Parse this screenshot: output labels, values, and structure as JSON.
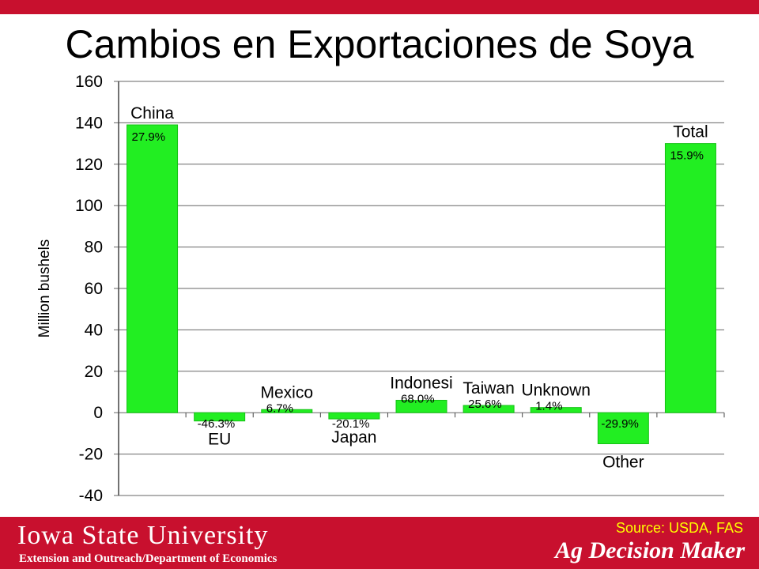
{
  "slide": {
    "title": "Cambios en Exportaciones de Soya"
  },
  "footer": {
    "university": "Iowa State University",
    "department": "Extension and Outreach/Department  of Economics",
    "source": "Source: USDA, FAS",
    "brand": "Ag Decision Maker"
  },
  "colors": {
    "bar": "#22ee22",
    "bar_border": "#16c216",
    "accent": "#c8102e",
    "source_text": "#ffff00"
  },
  "chart_data": {
    "type": "bar",
    "title": "",
    "xlabel": "",
    "ylabel": "Million bushels",
    "ylim": [
      -40,
      160
    ],
    "yticks": [
      "160",
      "140",
      "120",
      "100",
      "80",
      "60",
      "40",
      "20",
      "0",
      "-20",
      "-40"
    ],
    "grid": true,
    "categories": [
      "China",
      "EU",
      "Mexico",
      "Japan",
      "Indonesia",
      "Taiwan",
      "Unknown",
      "Other",
      "Total"
    ],
    "category_labels": [
      "China",
      "EU",
      "Mexico",
      "Japan",
      "Indonesi",
      "Taiwan",
      "Unknown",
      "Other",
      "Total"
    ],
    "values": [
      139,
      -4,
      1.5,
      -3,
      6,
      3.5,
      2.5,
      -15,
      130
    ],
    "pct_labels": [
      "27.9%",
      "-46.3%",
      "6.7%",
      "-20.1%",
      "68.0%",
      "25.6%",
      "1.4%",
      "-29.9%",
      "15.9%"
    ],
    "legend": "none"
  }
}
